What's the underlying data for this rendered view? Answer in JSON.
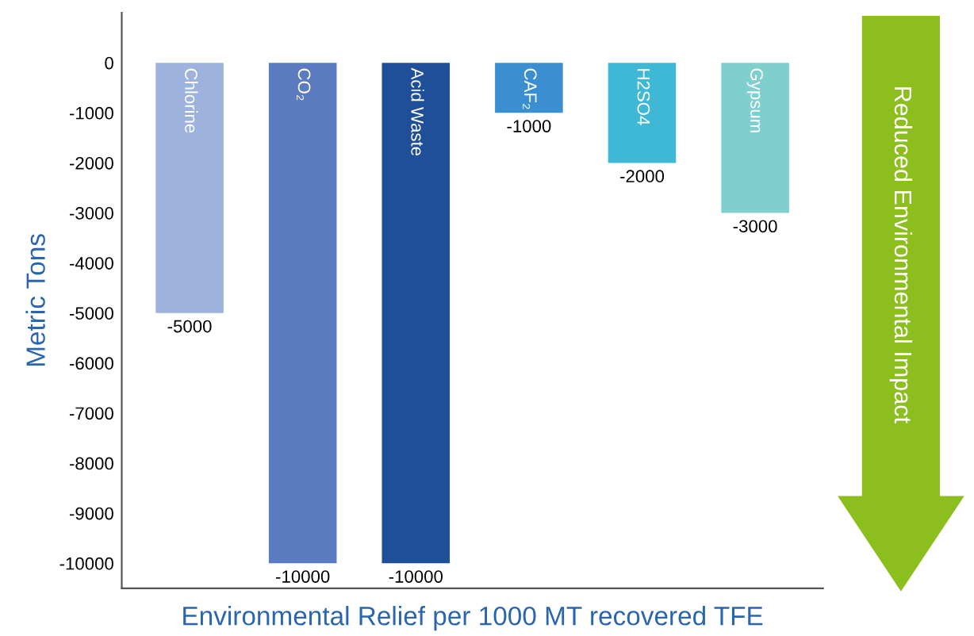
{
  "chart_data": {
    "type": "bar",
    "categories": [
      "Chlorine",
      "CO₂",
      "Acid Waste",
      "CAF₂",
      "H2SO4",
      "Gypsum"
    ],
    "values": [
      -5000,
      -10000,
      -10000,
      -1000,
      -2000,
      -3000
    ],
    "colors": [
      "#9db3dd",
      "#5a7bbf",
      "#1f4f98",
      "#3b8fd0",
      "#3fb8d6",
      "#7fcfcf"
    ],
    "ylim": [
      -10500,
      1000
    ],
    "yticks": [
      0,
      -1000,
      -2000,
      -3000,
      -4000,
      -5000,
      -6000,
      -7000,
      -8000,
      -9000,
      -10000
    ],
    "ylabel": "Metric Tons",
    "xlabel": "Environmental Relief per 1000 MT recovered TFE",
    "annotations": [
      "Reduced Environmental Impact"
    ],
    "data_labels": true,
    "grid": false,
    "legend": false
  }
}
